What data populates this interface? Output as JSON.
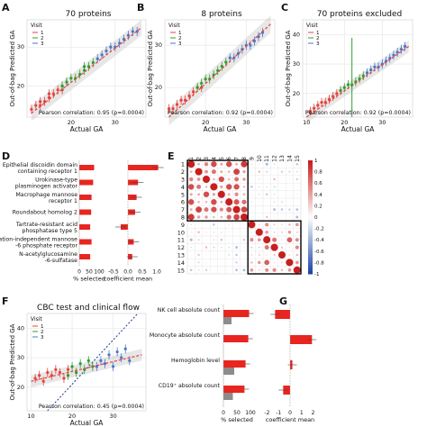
{
  "panels": [
    {
      "letter": "A",
      "title": "70 proteins",
      "xlabel": "Actual GA",
      "ylabel": "Out-of-bag Predicted GA",
      "corr": "Pearson correlation: 0.95 (p=0.0004)",
      "xticks": [
        "20",
        "30"
      ],
      "yticks": [
        "20",
        "30"
      ]
    },
    {
      "letter": "B",
      "title": "8 proteins",
      "xlabel": "Actual GA",
      "ylabel": "Out-of-bag Predicted GA",
      "corr": "Pearson correlation: 0.92 (p=0.0004)",
      "xticks": [
        "20",
        "30"
      ],
      "yticks": [
        "20",
        "30"
      ]
    },
    {
      "letter": "C",
      "title": "70 proteins excluded",
      "xlabel": "Actual GA",
      "ylabel": "Out-of-bag Predicted GA",
      "corr": "Pearson correlation: 0.92 (p=0.0004)",
      "xticks": [
        "10",
        "20",
        "30"
      ],
      "yticks": [
        "20",
        "30",
        "40"
      ]
    },
    {
      "letter": "F",
      "title": "CBC test and clinical flow",
      "xlabel": "Actual GA",
      "ylabel": "Out-of-bag Predicted GA",
      "corr": "Pearson correlation: 0.45 (p=0.0004)",
      "xticks": [
        "10",
        "20",
        "30"
      ],
      "yticks": [
        "20",
        "30",
        "40"
      ]
    }
  ],
  "legend": {
    "title": "Visit",
    "items": [
      "1",
      "2",
      "3"
    ]
  },
  "colors": {
    "v1": "#e8413c",
    "v2": "#2ca02c",
    "v3": "#4a78c8",
    "bar": "#e8251f",
    "grey": "#8c8c8c",
    "box": "#000000"
  },
  "panelD": {
    "letter": "D",
    "labels": [
      "Epithelial discoidin domain",
      "containing receptor 1",
      "Urokinase-type",
      "plasminogen activator",
      "Macrophage mannose",
      "receptor 1",
      "Roundabout homolog 2",
      "Tartrate-resistant acid",
      "phosphatase type 5",
      "Cation-independent mannose",
      "-6 phosphate receptor",
      "N-acetylglucosamine",
      "-6-sulfatase"
    ],
    "xlabel_left": "% selected",
    "xlabel_right": "coefficient mean",
    "left_ticks": [
      "0",
      "50",
      "100"
    ],
    "right_ticks": [
      "-0.5",
      "0.0",
      "0.5",
      "1.0"
    ]
  },
  "panelE": {
    "letter": "E",
    "row_labels": [
      "1",
      "2",
      "3",
      "4",
      "5",
      "6",
      "7",
      "8",
      "9",
      "10",
      "11",
      "12",
      "13",
      "14",
      "15"
    ],
    "col_labels": [
      "1",
      "2",
      "3",
      "4",
      "5",
      "6",
      "7",
      "8",
      "9",
      "10",
      "11",
      "12",
      "13",
      "14",
      "15"
    ],
    "scale_ticks": [
      "1",
      "0.8",
      "0.6",
      "0.4",
      "0.2",
      "0",
      "-0.2",
      "-0.4",
      "-0.6",
      "-0.8",
      "-1"
    ]
  },
  "panelG": {
    "letter": "G",
    "labels": [
      "NK cell absolute count",
      "Monocyte absolute count",
      "Hemoglobin level",
      "CD19⁺ absolute count"
    ],
    "xlabel_left": "% selected",
    "xlabel_right": "coefficient mean",
    "left_ticks": [
      "0",
      "50",
      "100"
    ],
    "right_ticks": [
      "-2",
      "-1",
      "0",
      "1",
      "2"
    ]
  },
  "chart_data": [
    {
      "type": "scatter",
      "panel": "A",
      "series": [
        {
          "name": "1",
          "x": [
            11,
            12,
            13,
            13,
            14,
            15,
            15,
            16,
            17,
            18,
            18,
            19
          ],
          "y": [
            14,
            15,
            15,
            16,
            16,
            17,
            18,
            18,
            19,
            20,
            19,
            21
          ]
        },
        {
          "name": "2",
          "x": [
            18,
            19,
            20,
            21,
            22,
            23,
            23,
            24,
            25
          ],
          "y": [
            20,
            21,
            22,
            22,
            23,
            24,
            25,
            25,
            26
          ]
        },
        {
          "name": "3",
          "x": [
            26,
            27,
            28,
            29,
            30,
            31,
            32,
            33,
            34,
            35
          ],
          "y": [
            27,
            28,
            29,
            30,
            30,
            31,
            32,
            33,
            34,
            34
          ]
        }
      ],
      "xlim": [
        10,
        37
      ],
      "ylim": [
        12,
        37
      ]
    },
    {
      "type": "scatter",
      "panel": "B",
      "series": [
        {
          "name": "1",
          "x": [
            11,
            12,
            13,
            14,
            15,
            16,
            17,
            18,
            19
          ],
          "y": [
            15,
            15,
            16,
            17,
            17,
            18,
            19,
            20,
            20
          ]
        },
        {
          "name": "2",
          "x": [
            18,
            19,
            20,
            21,
            22,
            23,
            24,
            25
          ],
          "y": [
            20,
            21,
            22,
            22,
            23,
            24,
            25,
            26
          ]
        },
        {
          "name": "3",
          "x": [
            26,
            27,
            28,
            29,
            30,
            31,
            32,
            33,
            34
          ],
          "y": [
            27,
            27,
            28,
            29,
            30,
            30,
            31,
            32,
            33
          ]
        }
      ],
      "xlim": [
        10,
        37
      ],
      "ylim": [
        13,
        36
      ]
    },
    {
      "type": "scatter",
      "panel": "C",
      "series": [
        {
          "name": "1",
          "x": [
            11,
            12,
            13,
            14,
            15,
            16,
            17,
            18,
            19
          ],
          "y": [
            14,
            15,
            16,
            17,
            17,
            18,
            19,
            20,
            21
          ]
        },
        {
          "name": "2",
          "x": [
            19,
            20,
            21,
            22,
            23,
            24,
            25
          ],
          "y": [
            21,
            22,
            23,
            23,
            24,
            25,
            26
          ]
        },
        {
          "name": "3",
          "x": [
            26,
            27,
            28,
            29,
            30,
            31,
            32,
            33,
            34,
            35,
            36
          ],
          "y": [
            27,
            28,
            29,
            29,
            30,
            31,
            32,
            33,
            34,
            35,
            36
          ]
        }
      ],
      "xlim": [
        9,
        38
      ],
      "ylim": [
        12,
        45
      ]
    },
    {
      "type": "scatter",
      "panel": "F",
      "series": [
        {
          "name": "1",
          "x": [
            11,
            12,
            13,
            14,
            15,
            16,
            17,
            18,
            19
          ],
          "y": [
            23,
            24,
            22,
            25,
            24,
            26,
            25,
            23,
            26
          ]
        },
        {
          "name": "2",
          "x": [
            19,
            20,
            21,
            22,
            23,
            24,
            25
          ],
          "y": [
            24,
            27,
            25,
            28,
            26,
            29,
            27
          ]
        },
        {
          "name": "3",
          "x": [
            26,
            27,
            28,
            29,
            30,
            31,
            32,
            33,
            34
          ],
          "y": [
            27,
            29,
            28,
            31,
            27,
            32,
            30,
            33,
            29
          ]
        }
      ],
      "xlim": [
        9,
        38
      ],
      "ylim": [
        12,
        45
      ]
    },
    {
      "type": "bar",
      "panel": "D",
      "categories": [
        "Epithelial discoidin domain containing receptor 1",
        "Urokinase-type plasminogen activator",
        "Macrophage mannose receptor 1",
        "Roundabout homolog 2",
        "Tartrate-resistant acid phosphatase type 5",
        "Cation-independent mannose -6 phosphate receptor",
        "N-acetylglucosamine -6-sulfatase"
      ],
      "series": [
        {
          "name": "% selected",
          "values": [
            75,
            70,
            62,
            60,
            55,
            62,
            55
          ]
        },
        {
          "name": "coefficient mean",
          "values": [
            1.05,
            0.35,
            0.3,
            0.25,
            -0.25,
            0.2,
            0.15
          ]
        }
      ]
    },
    {
      "type": "heatmap",
      "panel": "E",
      "size": 15,
      "scale": [
        -1,
        1
      ]
    },
    {
      "type": "bar",
      "panel": "G",
      "categories": [
        "NK cell absolute count",
        "Monocyte absolute count",
        "Hemoglobin level",
        "CD19⁺ absolute count"
      ],
      "series": [
        {
          "name": "% selected",
          "values": [
            95,
            92,
            82,
            78
          ]
        },
        {
          "name": "% selected (grey)",
          "values": [
            30,
            0,
            40,
            35
          ]
        },
        {
          "name": "coefficient mean",
          "values": [
            -1.3,
            1.9,
            0.2,
            -0.6
          ]
        }
      ]
    }
  ]
}
